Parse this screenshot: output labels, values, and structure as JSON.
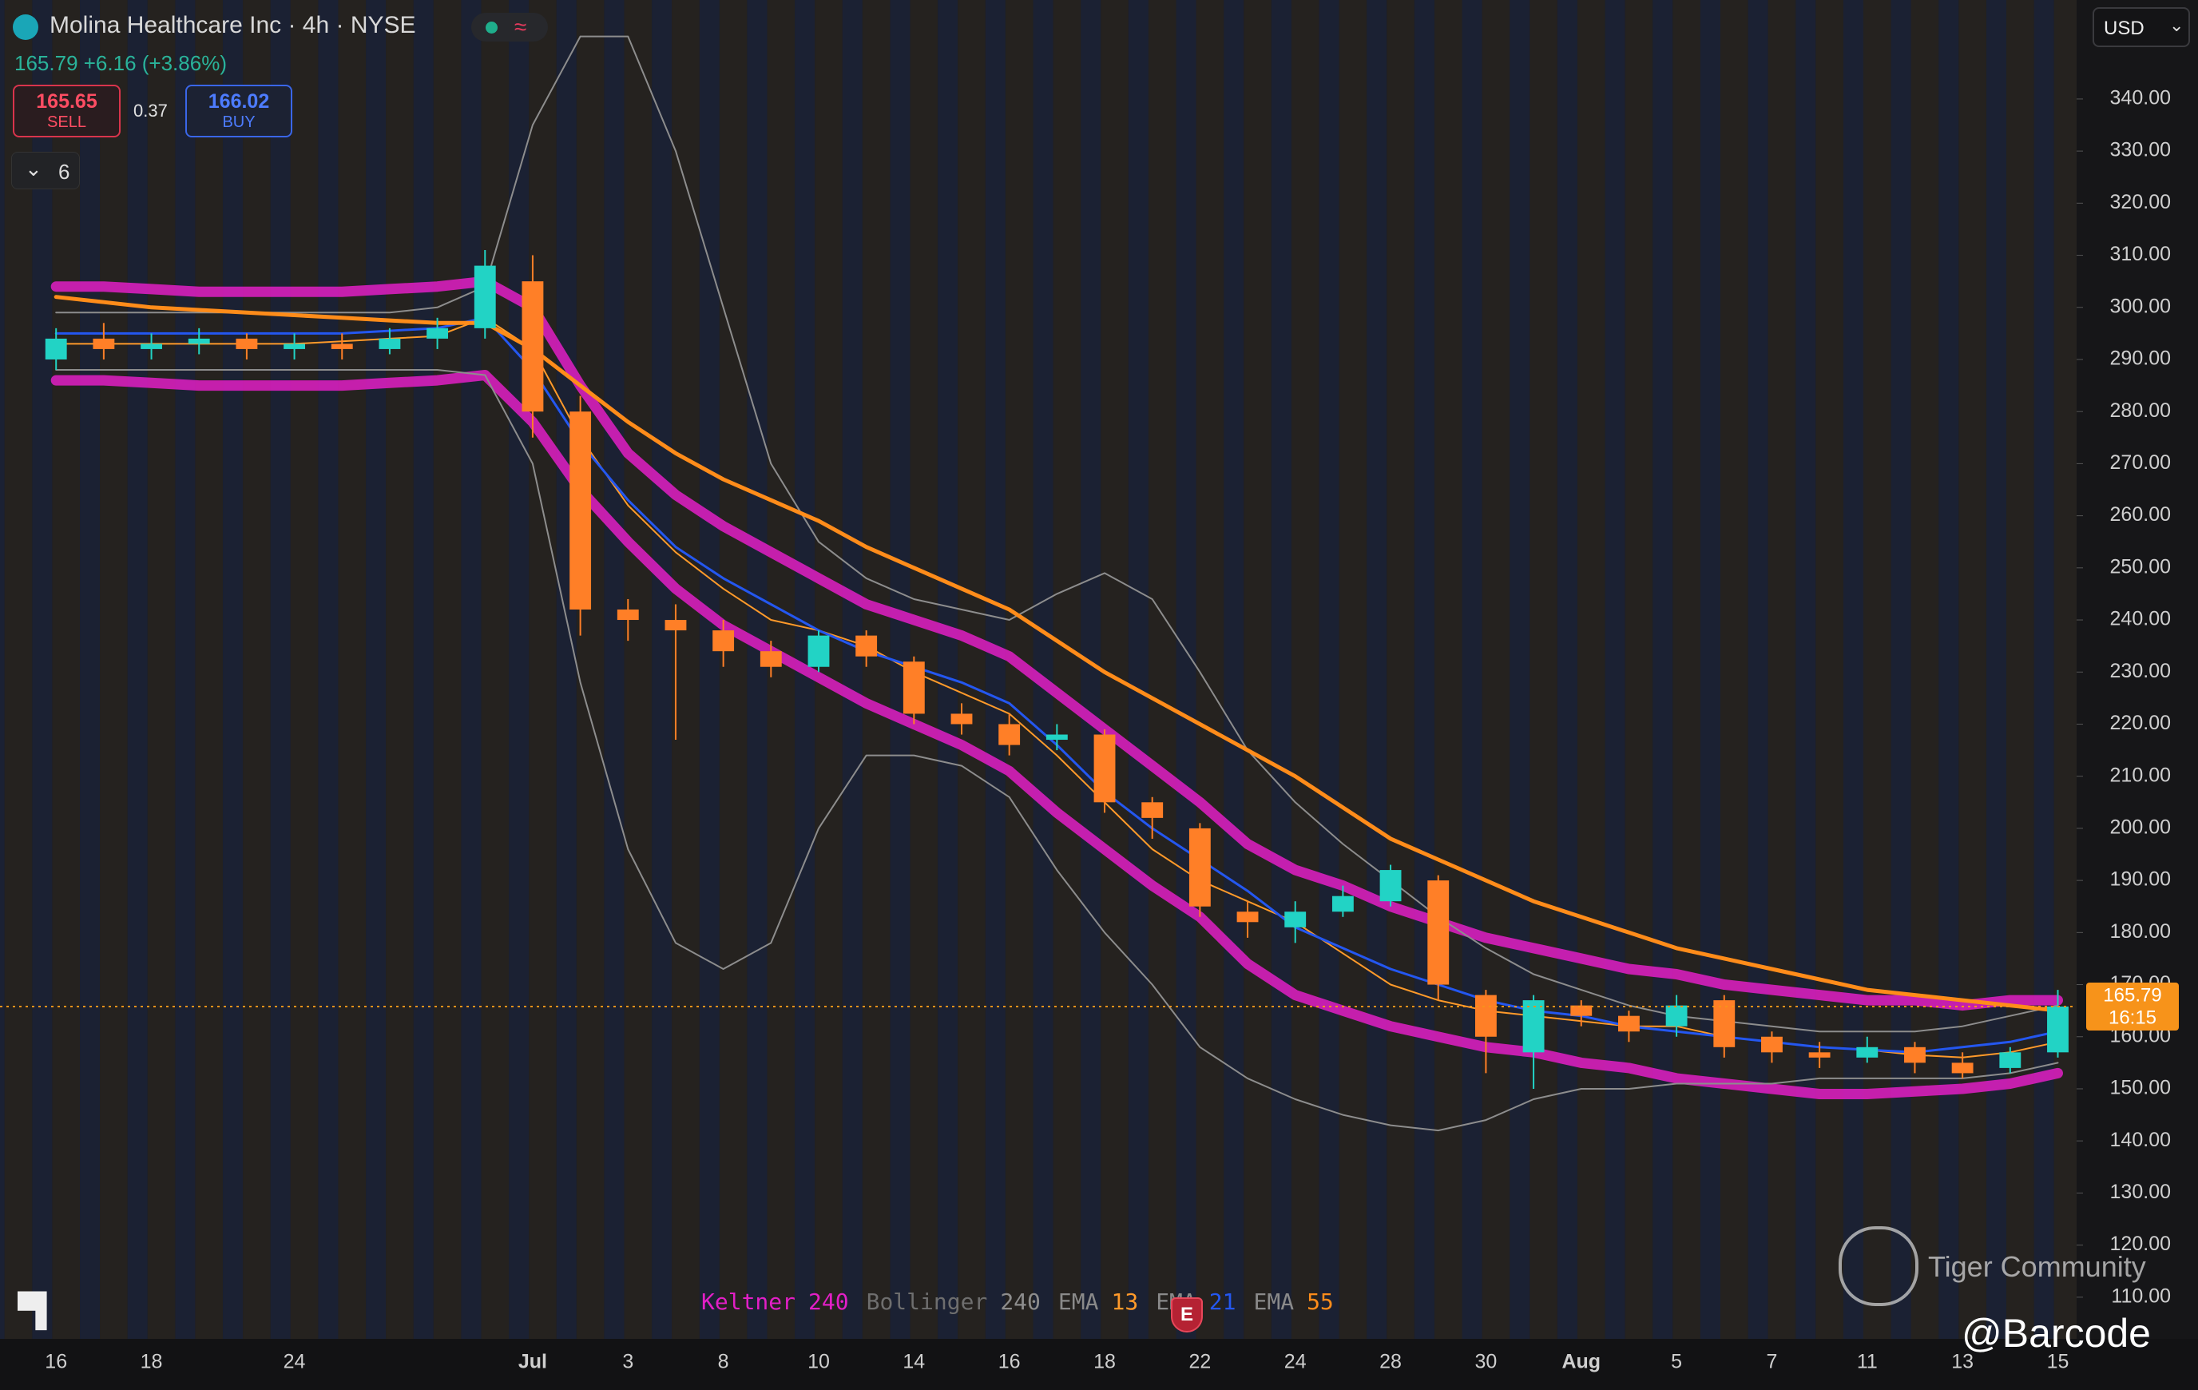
{
  "header": {
    "title": "Molina Healthcare Inc · 4h · NYSE",
    "quote": "165.79 +6.16 (+3.86%)",
    "sell_price": "165.65",
    "sell_label": "SELL",
    "spread": "0.37",
    "buy_price": "166.02",
    "buy_label": "BUY",
    "collapsed_count": "6",
    "currency": "USD",
    "earnings_marker": "E",
    "watermark": "Tiger Community",
    "author": "@Barcode"
  },
  "chart_data": {
    "type": "candlestick",
    "categories": [
      "16",
      null,
      "18",
      null,
      null,
      "24",
      null,
      null,
      null,
      null,
      "Jul",
      null,
      "3",
      null,
      "8",
      null,
      "10",
      null,
      "14",
      null,
      "16",
      null,
      "18",
      null,
      "22",
      null,
      "24",
      null,
      "28",
      null,
      "30",
      null,
      "Aug",
      null,
      "5",
      null,
      "7",
      null,
      "11",
      null,
      "13",
      null,
      "15"
    ],
    "ohlc": {
      "open": [
        290,
        294,
        292,
        293,
        294,
        292,
        293,
        292,
        294,
        296,
        305,
        280,
        242,
        240,
        238,
        234,
        231,
        237,
        232,
        222,
        220,
        217,
        218,
        205,
        200,
        184,
        181,
        184,
        186,
        190,
        168,
        157,
        166,
        164,
        162,
        167,
        160,
        157,
        156,
        158,
        155,
        154,
        157
      ],
      "high": [
        296,
        297,
        295,
        296,
        295,
        295,
        295,
        296,
        298,
        311,
        310,
        283,
        244,
        243,
        240,
        236,
        238,
        238,
        233,
        224,
        222,
        220,
        219,
        206,
        201,
        186,
        186,
        189,
        193,
        191,
        169,
        168,
        167,
        165,
        168,
        168,
        161,
        159,
        160,
        159,
        157,
        158,
        169
      ],
      "low": [
        288,
        290,
        290,
        291,
        290,
        290,
        290,
        291,
        292,
        294,
        275,
        237,
        236,
        217,
        231,
        229,
        230,
        231,
        220,
        218,
        214,
        215,
        203,
        198,
        183,
        179,
        178,
        183,
        185,
        167,
        153,
        150,
        162,
        159,
        160,
        156,
        155,
        154,
        155,
        153,
        152,
        153,
        156
      ],
      "close": [
        294,
        292,
        293,
        294,
        292,
        293,
        292,
        294,
        296,
        308,
        280,
        242,
        240,
        238,
        234,
        231,
        237,
        233,
        222,
        220,
        216,
        218,
        205,
        202,
        185,
        182,
        184,
        187,
        192,
        170,
        160,
        167,
        164,
        161,
        166,
        158,
        157,
        156,
        158,
        155,
        153,
        157,
        165.79
      ]
    },
    "up_color": "#22d3c5",
    "down_color": "#ff7f27",
    "indicators": [
      {
        "name": "Keltner",
        "param": "240",
        "color": "#e21fc6",
        "label_color": "#e21fc6",
        "line_width": 13,
        "lines": [
          [
            304,
            304,
            303.5,
            303,
            303,
            303,
            303,
            303.5,
            304,
            305,
            300,
            285,
            272,
            264,
            258,
            253,
            248,
            243,
            240,
            237,
            233,
            226,
            219,
            212,
            205,
            197,
            192,
            189,
            185,
            182,
            179,
            177,
            175,
            173,
            172,
            170,
            169,
            168,
            167,
            167,
            166,
            167,
            167
          ],
          [
            286,
            286,
            285.5,
            285,
            285,
            285,
            285,
            285.5,
            286,
            287,
            278,
            265,
            255,
            246,
            239,
            234,
            229,
            224,
            220,
            216,
            211,
            203,
            196,
            189,
            183,
            174,
            168,
            165,
            162,
            160,
            158,
            157,
            155,
            154,
            152,
            151,
            150,
            149,
            149,
            149.5,
            150,
            151,
            153
          ]
        ]
      },
      {
        "name": "Bollinger",
        "param": "240",
        "color": "#8d8d8d",
        "label_color": "#6e6e6e",
        "line_width": 2,
        "lines": [
          [
            299,
            299,
            299,
            299,
            299,
            299,
            299,
            299,
            300,
            304,
            335,
            352,
            352,
            330,
            300,
            270,
            255,
            248,
            244,
            242,
            240,
            245,
            249,
            244,
            230,
            215,
            205,
            197,
            190,
            183,
            177,
            172,
            169,
            166,
            164,
            163,
            162,
            161,
            161,
            161,
            162,
            164,
            166
          ],
          [
            288,
            288,
            288,
            288,
            288,
            288,
            288,
            288,
            288,
            287,
            270,
            228,
            196,
            178,
            173,
            178,
            200,
            214,
            214,
            212,
            206,
            192,
            180,
            170,
            158,
            152,
            148,
            145,
            143,
            142,
            144,
            148,
            150,
            150,
            151,
            151,
            151,
            152,
            152,
            152,
            152,
            153,
            155
          ]
        ]
      },
      {
        "name": "EMA",
        "param": "13",
        "color": "#ff9a2a",
        "label_color": "#8a8a8a",
        "line_width": 2,
        "lines": [
          [
            293,
            293,
            293,
            293,
            293,
            293,
            293.5,
            294,
            294.5,
            298,
            292,
            275,
            262,
            253,
            246,
            240,
            238,
            235,
            230,
            226,
            222,
            214,
            205,
            196,
            190,
            186,
            182,
            176,
            170,
            167,
            165,
            164,
            163,
            162,
            162,
            160,
            159,
            158,
            157.5,
            156.5,
            156,
            157,
            159
          ]
        ]
      },
      {
        "name": "EMA",
        "param": "21",
        "color": "#2457f0",
        "label_color": "#8a8a8a",
        "line_width": 3,
        "lines": [
          [
            295,
            295,
            295,
            295,
            295,
            295,
            295,
            295.5,
            296,
            298,
            288,
            274,
            263,
            254,
            248,
            243,
            238,
            234,
            231,
            228,
            224,
            216,
            207,
            200,
            194,
            188,
            181,
            177,
            173,
            170,
            167,
            165,
            164,
            162,
            161,
            160,
            159,
            158,
            157.5,
            157,
            158,
            159,
            161
          ]
        ]
      },
      {
        "name": "EMA",
        "param": "55",
        "color": "#ff8c1a",
        "label_color": "#8a8a8a",
        "line_width": 5,
        "lines": [
          [
            302,
            301,
            300,
            299.5,
            299,
            298.5,
            298,
            297.5,
            297,
            297,
            292,
            285,
            278,
            272,
            267,
            263,
            259,
            254,
            250,
            246,
            242,
            236,
            230,
            225,
            220,
            215,
            210,
            204,
            198,
            194,
            190,
            186,
            183,
            180,
            177,
            175,
            173,
            171,
            169,
            168,
            167,
            166,
            165
          ]
        ]
      }
    ],
    "last_price": {
      "value": 165.79,
      "label": "165.79",
      "time": "16:15",
      "color": "#f7931a"
    },
    "ylim": [
      102,
      359
    ],
    "yticks": [
      {
        "value": 110,
        "label": "110.00"
      },
      {
        "value": 120,
        "label": "120.00"
      },
      {
        "value": 130,
        "label": "130.00"
      },
      {
        "value": 140,
        "label": "140.00"
      },
      {
        "value": 150,
        "label": "150.00"
      },
      {
        "value": 160,
        "label": "160.00"
      },
      {
        "value": 170,
        "label": "170.00"
      },
      {
        "value": 180,
        "label": "180.00"
      },
      {
        "value": 190,
        "label": "190.00"
      },
      {
        "value": 200,
        "label": "200.00"
      },
      {
        "value": 210,
        "label": "210.00"
      },
      {
        "value": 220,
        "label": "220.00"
      },
      {
        "value": 230,
        "label": "230.00"
      },
      {
        "value": 240,
        "label": "240.00"
      },
      {
        "value": 250,
        "label": "250.00"
      },
      {
        "value": 260,
        "label": "260.00"
      },
      {
        "value": 270,
        "label": "270.00"
      },
      {
        "value": 280,
        "label": "280.00"
      },
      {
        "value": 290,
        "label": "290.00"
      },
      {
        "value": 300,
        "label": "300.00"
      },
      {
        "value": 310,
        "label": "310.00"
      },
      {
        "value": 320,
        "label": "320.00"
      },
      {
        "value": 330,
        "label": "330.00"
      },
      {
        "value": 340,
        "label": "340.00"
      }
    ],
    "grid": false
  }
}
